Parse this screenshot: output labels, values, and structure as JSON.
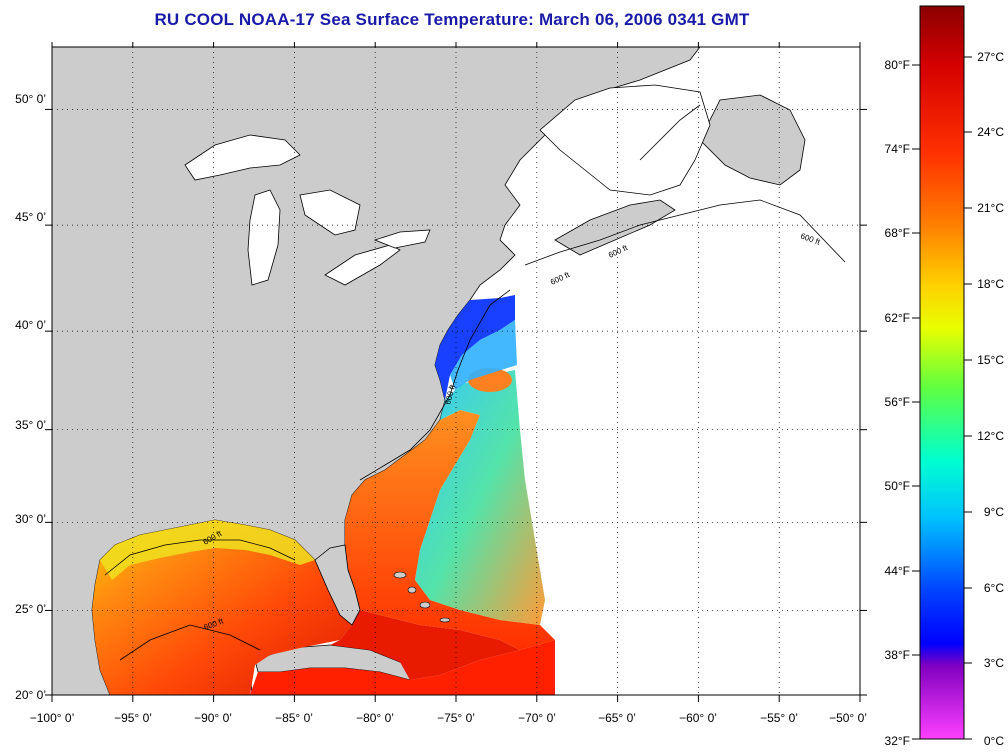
{
  "title": "RU COOL  NOAA-17  Sea Surface Temperature:  March 06, 2006 0341 GMT",
  "map": {
    "lon_range": [
      -100,
      -50
    ],
    "lat_range": [
      20,
      52.5
    ],
    "lon_ticks": [
      "−100° 0’",
      "−95° 0’",
      "−90° 0’",
      "−85° 0’",
      "−80° 0’",
      "−75° 0’",
      "−70° 0’",
      "−65° 0’",
      "−60° 0’",
      "−55° 0’",
      "−50° 0’"
    ],
    "lat_ticks": [
      "20° 0’",
      "25° 0’",
      "30° 0’",
      "35° 0’",
      "40° 0’",
      "45° 0’",
      "50° 0’"
    ],
    "contour_label": "600 ft",
    "land_color": "#cccccc",
    "no_data_color": "#ffffff",
    "grid": "dotted"
  },
  "colorbar": {
    "fahrenheit_labels": [
      "80°F",
      "74°F",
      "68°F",
      "62°F",
      "56°F",
      "50°F",
      "44°F",
      "38°F",
      "32°F"
    ],
    "celsius_labels": [
      "27°C",
      "24°C",
      "21°C",
      "18°C",
      "15°C",
      "12°C",
      "9°C",
      "6°C",
      "3°C",
      "0°C"
    ],
    "colors": [
      "#8b0000",
      "#d40000",
      "#ff3000",
      "#ff8000",
      "#ffd000",
      "#e8ff00",
      "#60ff40",
      "#00ffd0",
      "#00c0ff",
      "#0040ff",
      "#0000ff",
      "#8000c0",
      "#ff40ff"
    ]
  }
}
